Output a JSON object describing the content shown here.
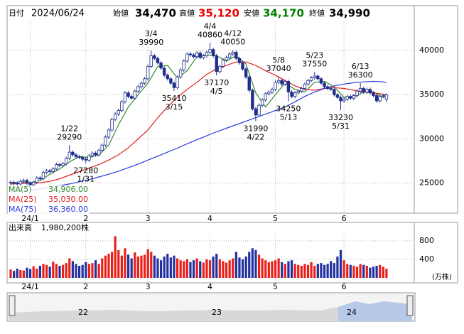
{
  "header": {
    "date_label": "日付",
    "date": "2024/06/24",
    "quotes": [
      {
        "label": "始値",
        "value": "34,470",
        "color": "#000000"
      },
      {
        "label": "高値",
        "value": "35,120",
        "color": "#e60000"
      },
      {
        "label": "安値",
        "value": "34,170",
        "color": "#008000"
      },
      {
        "label": "終値",
        "value": "34,990",
        "color": "#000000"
      }
    ]
  },
  "chart_data": {
    "type": "candlestick",
    "up_color": "#ffffff",
    "down_color": "#1f2d8c",
    "line_color": "#1f2d8c",
    "xlim": [
      -0.65,
      123.5
    ],
    "xticks": [
      {
        "value": 6,
        "label": "24/1"
      },
      {
        "value": 23,
        "label": "2"
      },
      {
        "value": 42,
        "label": "3"
      },
      {
        "value": 61,
        "label": "4"
      },
      {
        "value": 81,
        "label": "5"
      },
      {
        "value": 102,
        "label": "6"
      }
    ],
    "ylim": [
      21600,
      44900
    ],
    "yticks": [
      25000,
      30000,
      35000,
      40000
    ],
    "grid": true,
    "open": [
      25000,
      25100,
      25000,
      24900,
      25200,
      25300,
      25000,
      24800,
      25100,
      25600,
      25500,
      26200,
      26400,
      26300,
      26600,
      27100,
      27000,
      27200,
      27800,
      28500,
      28200,
      28000,
      27900,
      27700,
      27600,
      28100,
      28400,
      28200,
      28700,
      29300,
      30200,
      31000,
      32200,
      32800,
      33200,
      34200,
      35200,
      34800,
      34600,
      35400,
      35900,
      36300,
      36800,
      38200,
      39400,
      39100,
      38600,
      38000,
      37200,
      36800,
      36300,
      35800,
      37000,
      37800,
      38800,
      39600,
      39500,
      39300,
      39700,
      39200,
      39400,
      39800,
      40100,
      39400,
      37600,
      38200,
      38900,
      39200,
      39600,
      39800,
      39100,
      38600,
      37900,
      37000,
      35500,
      33400,
      32700,
      33800,
      34400,
      35100,
      35300,
      35600,
      36400,
      36600,
      36200,
      36500,
      35300,
      34800,
      35200,
      35400,
      35700,
      36200,
      36600,
      36900,
      37100,
      36800,
      36300,
      35900,
      35700,
      35600,
      35000,
      34700,
      34300,
      34500,
      34800,
      34600,
      34900,
      35400,
      35700,
      35300,
      35600,
      35200,
      34900,
      34300,
      34800,
      34470
    ],
    "high": [
      25300,
      25300,
      25200,
      25400,
      25500,
      25500,
      25200,
      25300,
      25800,
      25800,
      26400,
      26600,
      26600,
      26800,
      27300,
      27300,
      27400,
      28000,
      29290,
      28700,
      28400,
      28200,
      28100,
      27900,
      28300,
      28600,
      28600,
      28900,
      29500,
      30400,
      31200,
      32400,
      33000,
      33400,
      34400,
      35400,
      35400,
      35000,
      35600,
      36100,
      36500,
      37000,
      38400,
      39990,
      39600,
      39300,
      38800,
      38200,
      37400,
      37000,
      36500,
      37200,
      38000,
      39000,
      39800,
      39800,
      39700,
      39900,
      39900,
      39600,
      40000,
      40860,
      40300,
      39600,
      38400,
      39100,
      39400,
      39800,
      40050,
      40000,
      39300,
      38800,
      38100,
      37200,
      35700,
      33600,
      34000,
      34600,
      35300,
      35500,
      35800,
      36600,
      37040,
      36800,
      36700,
      36700,
      35500,
      35400,
      35600,
      35900,
      36400,
      36800,
      37100,
      37550,
      37300,
      37000,
      36500,
      36100,
      35900,
      35800,
      35200,
      34900,
      34700,
      35000,
      35000,
      35100,
      35600,
      36300,
      35900,
      35800,
      35800,
      35400,
      35100,
      35000,
      35100,
      35120
    ],
    "low": [
      24800,
      24800,
      24700,
      24700,
      25000,
      24800,
      24600,
      24600,
      24900,
      25300,
      25300,
      26000,
      26100,
      26100,
      26400,
      26800,
      26800,
      27000,
      27600,
      28000,
      27800,
      27700,
      27500,
      27280,
      27400,
      27900,
      28000,
      28000,
      28500,
      29100,
      30000,
      30800,
      32000,
      32600,
      33000,
      34000,
      34600,
      34400,
      34400,
      35200,
      35700,
      36100,
      36600,
      38000,
      38900,
      38400,
      37800,
      37000,
      36600,
      36100,
      35410,
      35600,
      36800,
      37600,
      38600,
      39300,
      39100,
      39100,
      39000,
      39000,
      39200,
      39600,
      39200,
      37170,
      37400,
      38000,
      38700,
      39000,
      39400,
      38900,
      38400,
      37700,
      36800,
      35300,
      33200,
      31990,
      32500,
      33600,
      34200,
      34900,
      35100,
      35400,
      36200,
      36000,
      36000,
      34250,
      34600,
      34600,
      35000,
      35200,
      35500,
      36000,
      36400,
      36700,
      36600,
      36100,
      35700,
      35500,
      35400,
      34800,
      34500,
      33230,
      34100,
      34300,
      34400,
      34400,
      34700,
      35200,
      35100,
      35100,
      35000,
      34700,
      34100,
      34100,
      34600,
      34170
    ],
    "close": [
      25100,
      25000,
      24900,
      25200,
      25300,
      25000,
      24800,
      25100,
      25600,
      25500,
      26200,
      26400,
      26300,
      26600,
      27100,
      27000,
      27200,
      27800,
      28500,
      28200,
      28000,
      27900,
      27700,
      27600,
      28100,
      28400,
      28200,
      28700,
      29300,
      30200,
      31000,
      32200,
      32800,
      33200,
      34200,
      35200,
      34800,
      34600,
      35400,
      35900,
      36300,
      36800,
      38200,
      39400,
      39100,
      38600,
      38000,
      37200,
      36800,
      36300,
      35800,
      37000,
      37800,
      38800,
      39600,
      39500,
      39300,
      39700,
      39200,
      39400,
      39800,
      40100,
      39400,
      37600,
      38200,
      38900,
      39200,
      39600,
      39800,
      39100,
      38600,
      37900,
      37000,
      35500,
      33400,
      32700,
      33800,
      34400,
      35100,
      35300,
      35600,
      36400,
      36600,
      36200,
      36500,
      35300,
      34800,
      35200,
      35400,
      35700,
      36200,
      36600,
      36900,
      37100,
      36800,
      36300,
      35900,
      35700,
      35600,
      35000,
      34700,
      34300,
      34500,
      34800,
      34600,
      34900,
      35400,
      35700,
      35300,
      35600,
      35200,
      34900,
      34300,
      34800,
      34900,
      34990
    ],
    "ma_x": [
      0,
      3,
      6,
      9,
      12,
      15,
      18,
      21,
      24,
      27,
      30,
      33,
      36,
      39,
      42,
      45,
      48,
      51,
      54,
      57,
      60,
      63,
      66,
      69,
      72,
      75,
      78,
      81,
      84,
      87,
      90,
      93,
      96,
      99,
      102,
      105,
      108,
      111,
      114,
      115
    ],
    "series": [
      {
        "name": "MA(5)",
        "current": "34,906.00",
        "color": "#2e8b2e",
        "values": [
          25000,
          25050,
          25050,
          25300,
          26000,
          26600,
          27400,
          28000,
          27900,
          28200,
          29300,
          31600,
          33600,
          35000,
          36300,
          38200,
          38300,
          36900,
          37700,
          39300,
          39500,
          39400,
          38800,
          39400,
          38500,
          35200,
          33600,
          35000,
          36300,
          35600,
          35300,
          36400,
          36500,
          35900,
          34700,
          34700,
          35300,
          35300,
          34700,
          34906
        ]
      },
      {
        "name": "MA(25)",
        "current": "35,030.00",
        "color": "#e02020",
        "values": [
          24900,
          24950,
          25000,
          25050,
          25200,
          25500,
          25900,
          26300,
          26700,
          27100,
          27600,
          28200,
          29000,
          30000,
          31000,
          32400,
          33600,
          34700,
          35600,
          36400,
          37300,
          37900,
          38300,
          38700,
          38700,
          38300,
          37700,
          37200,
          36600,
          36000,
          35600,
          35500,
          35700,
          35800,
          35700,
          35500,
          35300,
          35200,
          35060,
          35030
        ]
      },
      {
        "name": "MA(75)",
        "current": "36,360.00",
        "color": "#2a3cdc",
        "values": [
          24000,
          24100,
          24200,
          24350,
          24500,
          24700,
          24900,
          25150,
          25400,
          25700,
          26000,
          26350,
          26750,
          27150,
          27600,
          28050,
          28500,
          28950,
          29450,
          29900,
          30350,
          30800,
          31200,
          31600,
          32000,
          32400,
          32800,
          33200,
          33600,
          34200,
          34800,
          35300,
          35700,
          36000,
          36200,
          36350,
          36450,
          36500,
          36450,
          36360
        ]
      }
    ],
    "annotations": [
      {
        "date": "1/22",
        "value": 29290
      },
      {
        "date": "1/31",
        "value": 27280
      },
      {
        "date": "3/4",
        "value": 39990
      },
      {
        "date": "3/15",
        "value": 35410
      },
      {
        "date": "4/4",
        "value": 40860
      },
      {
        "date": "4/12",
        "value": 40050
      },
      {
        "date": "4/5",
        "value": 37170
      },
      {
        "date": "4/22",
        "value": 31990
      },
      {
        "date": "5/8",
        "value": 37040
      },
      {
        "date": "5/13",
        "value": 34250
      },
      {
        "date": "5/23",
        "value": 37550
      },
      {
        "date": "5/31",
        "value": 33230
      },
      {
        "date": "6/13",
        "value": 36300
      }
    ],
    "volume": {
      "title": "出来高",
      "total_label": "1,980,200株",
      "unit": "(万株)",
      "up_color": "#e8201a",
      "down_color": "#2230a0",
      "ylim": [
        0,
        1150
      ],
      "yticks": [
        400,
        800
      ],
      "values": [
        180,
        150,
        200,
        170,
        160,
        220,
        190,
        250,
        200,
        260,
        300,
        280,
        240,
        350,
        300,
        260,
        280,
        320,
        420,
        360,
        300,
        260,
        280,
        340,
        300,
        320,
        380,
        300,
        420,
        480,
        520,
        560,
        900,
        600,
        480,
        640,
        500,
        420,
        550,
        460,
        480,
        500,
        620,
        560,
        480,
        420,
        380,
        460,
        520,
        440,
        480,
        420,
        380,
        360,
        400,
        340,
        380,
        420,
        360,
        330,
        400,
        380,
        460,
        520,
        400,
        360,
        330,
        380,
        420,
        560,
        440,
        400,
        460,
        560,
        640,
        600,
        500,
        420,
        380,
        340,
        360,
        380,
        420,
        340,
        300,
        360,
        380,
        300,
        280,
        260,
        300,
        280,
        340,
        260,
        300,
        320,
        280,
        300,
        360,
        320,
        460,
        600,
        380,
        300,
        280,
        260,
        240,
        300,
        280,
        260,
        220,
        240,
        260,
        280,
        240,
        198.02
      ]
    },
    "navigator": {
      "labels": [
        "22",
        "23",
        "24"
      ]
    }
  }
}
